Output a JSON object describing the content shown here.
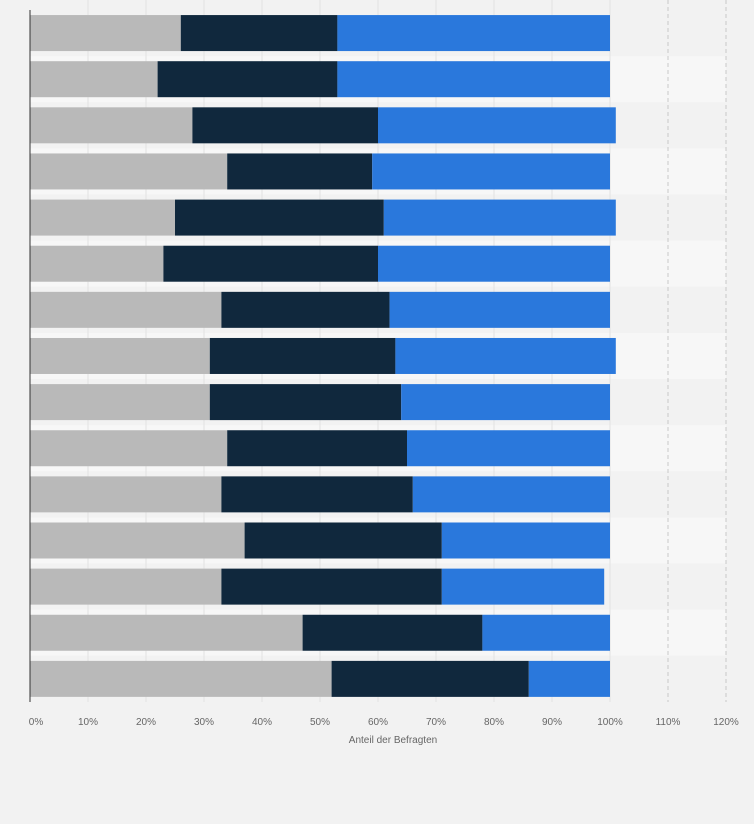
{
  "chart_data": {
    "type": "bar",
    "orientation": "horizontal",
    "stacked": true,
    "title": "",
    "xlabel": "Anteil der Befragten",
    "ylabel": "",
    "xlim": [
      0,
      120
    ],
    "xticks": [
      "0%",
      "10%",
      "20%",
      "30%",
      "40%",
      "50%",
      "60%",
      "70%",
      "80%",
      "90%",
      "100%",
      "110%",
      "120%"
    ],
    "grid": true,
    "legend": "none",
    "categories": [
      "",
      "",
      "",
      "",
      "",
      "",
      "",
      "",
      "",
      "",
      "",
      "",
      "",
      "",
      ""
    ],
    "series": [
      {
        "color": "#b9b9b9",
        "values": [
          26,
          22,
          28,
          34,
          25,
          23,
          33,
          31,
          31,
          34,
          33,
          37,
          33,
          47,
          52
        ]
      },
      {
        "color": "#10283d",
        "values": [
          27,
          31,
          32,
          25,
          36,
          37,
          29,
          32,
          33,
          31,
          33,
          34,
          38,
          31,
          34
        ]
      },
      {
        "color": "#2a78dc",
        "values": [
          47,
          47,
          41,
          41,
          40,
          40,
          38,
          38,
          36,
          35,
          34,
          29,
          28,
          22,
          14
        ]
      }
    ]
  }
}
